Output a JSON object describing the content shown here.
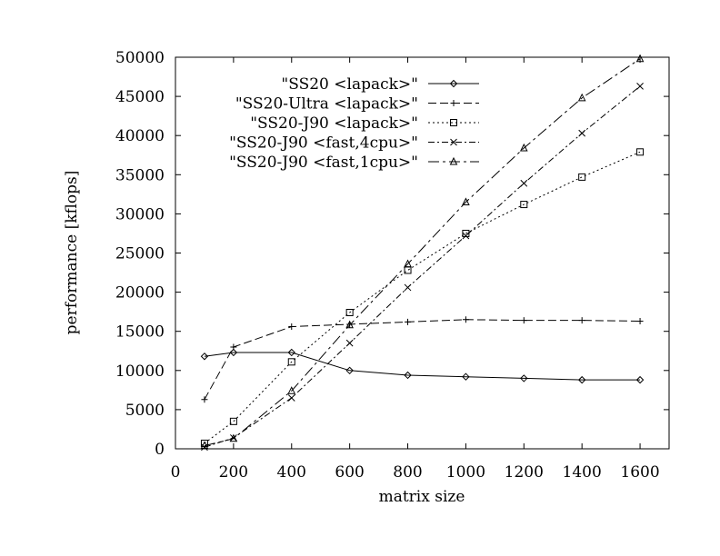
{
  "chart_data": {
    "type": "line",
    "title": "",
    "xlabel": "matrix size",
    "ylabel": "performance [kflops]",
    "xlim": [
      0,
      1700
    ],
    "ylim": [
      0,
      50000
    ],
    "x_ticks": [
      0,
      200,
      400,
      600,
      800,
      1000,
      1200,
      1400,
      1600
    ],
    "y_ticks": [
      0,
      5000,
      10000,
      15000,
      20000,
      25000,
      30000,
      35000,
      40000,
      45000,
      50000
    ],
    "grid": false,
    "legend_position": "top-left",
    "series": [
      {
        "name": "\"SS20 <lapack>\"",
        "marker": "diamond",
        "dash": "solid",
        "x": [
          100,
          200,
          400,
          600,
          800,
          1000,
          1200,
          1400,
          1600
        ],
        "y": [
          11800,
          12300,
          12300,
          10000,
          9400,
          9200,
          9000,
          8800,
          8800
        ]
      },
      {
        "name": "\"SS20-Ultra <lapack>\"",
        "marker": "plus",
        "dash": "long-dash",
        "x": [
          100,
          200,
          400,
          600,
          800,
          1000,
          1200,
          1400,
          1600
        ],
        "y": [
          6300,
          13000,
          15600,
          15900,
          16200,
          16500,
          16400,
          16400,
          16300
        ]
      },
      {
        "name": "\"SS20-J90 <lapack>\"",
        "marker": "square",
        "dash": "dotted",
        "x": [
          100,
          200,
          400,
          600,
          800,
          1000,
          1200,
          1400,
          1600
        ],
        "y": [
          700,
          3500,
          11100,
          17400,
          22800,
          27500,
          31200,
          34700,
          37900
        ]
      },
      {
        "name": "\"SS20-J90 <fast,4cpu>\"",
        "marker": "cross",
        "dash": "dash-dot",
        "x": [
          100,
          200,
          400,
          600,
          800,
          1000,
          1200,
          1400,
          1600
        ],
        "y": [
          200,
          1400,
          6500,
          13500,
          20600,
          27200,
          33900,
          40300,
          46300
        ]
      },
      {
        "name": "\"SS20-J90 <fast,1cpu>\"",
        "marker": "triangle",
        "dash": "dash-dot-long",
        "x": [
          100,
          200,
          400,
          600,
          800,
          1000,
          1200,
          1400,
          1600
        ],
        "y": [
          400,
          1300,
          7400,
          15800,
          23600,
          31500,
          38400,
          44800,
          49800
        ]
      }
    ]
  }
}
